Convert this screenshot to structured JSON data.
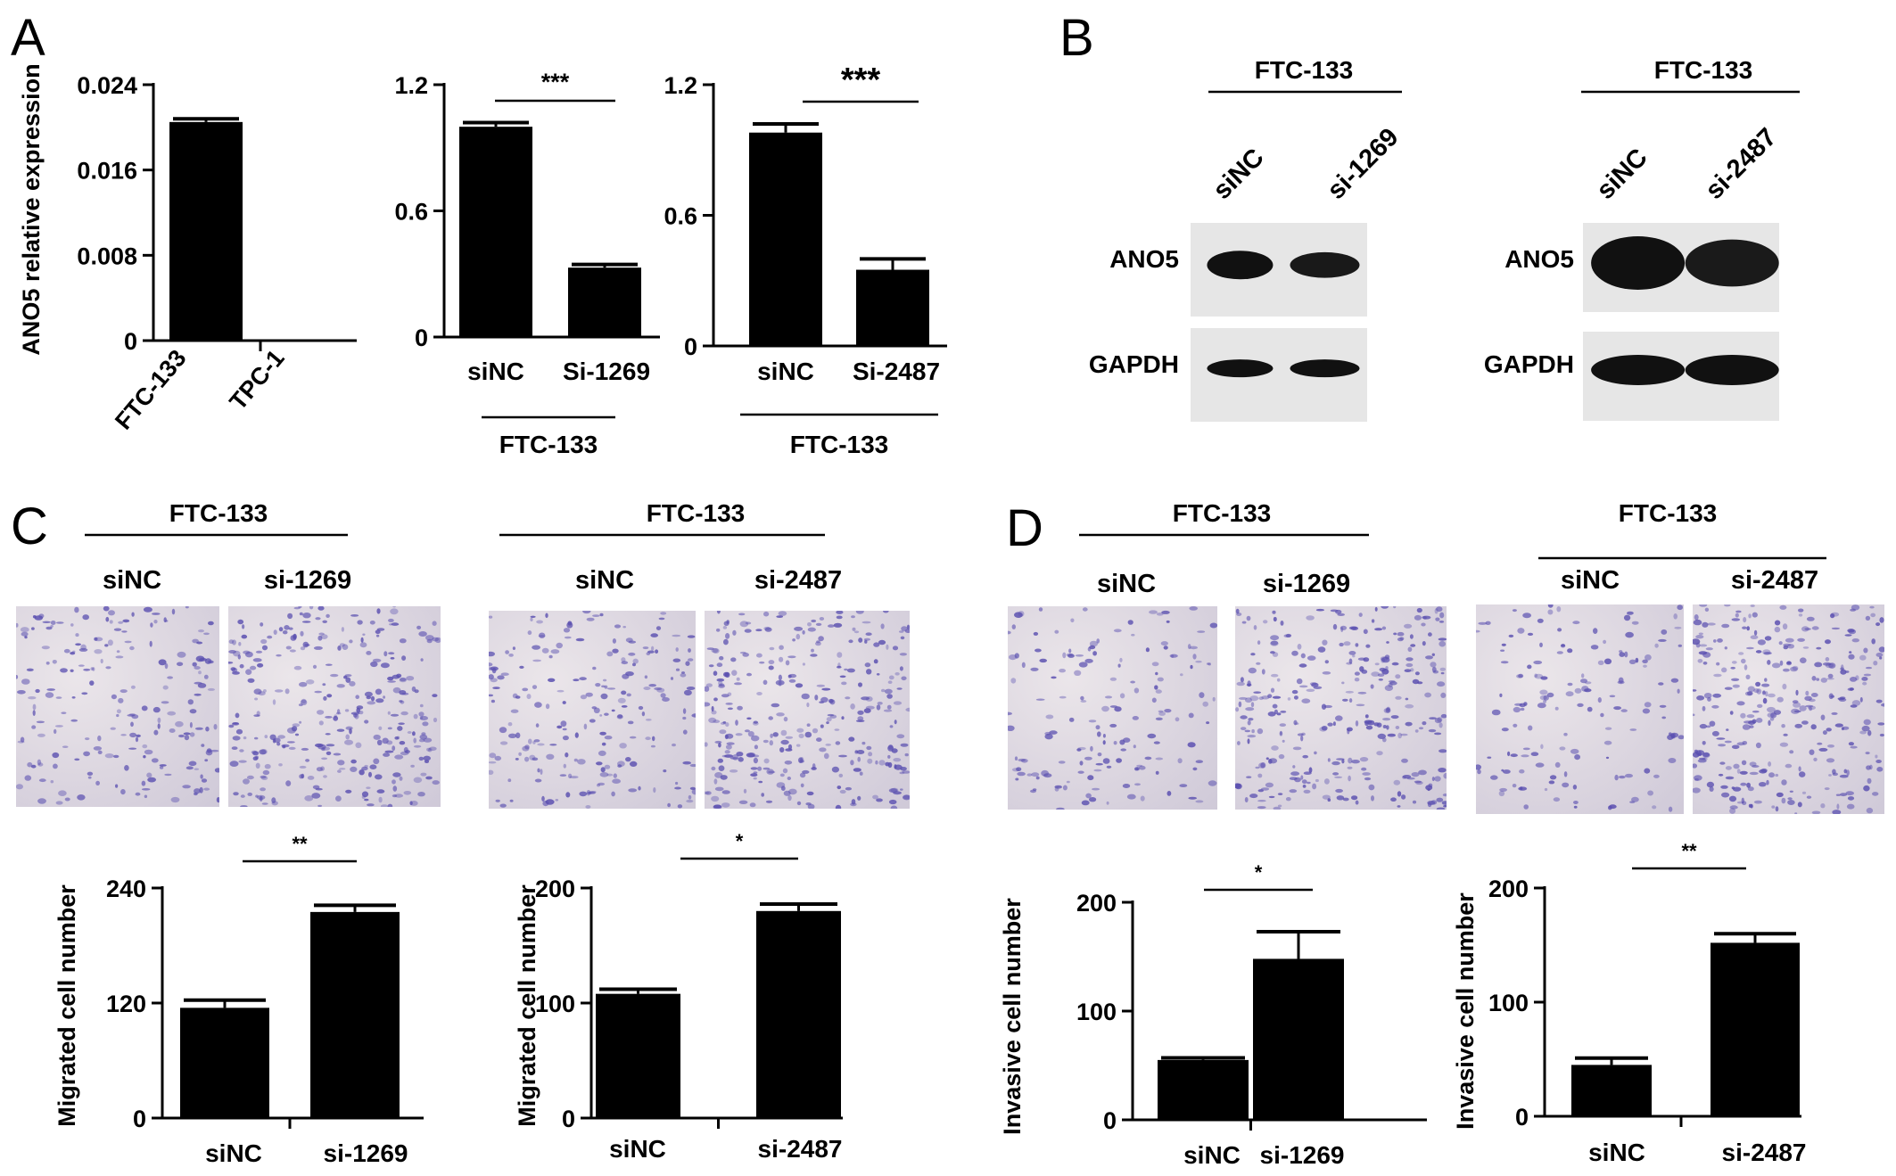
{
  "figure": {
    "panel_labels": {
      "a": "A",
      "b": "B",
      "c": "C",
      "d": "D"
    },
    "cell_line": "FTC-133",
    "blot_rows": {
      "target": "ANO5",
      "control": "GAPDH"
    }
  },
  "chart_data": [
    {
      "id": "A1",
      "type": "bar",
      "ylabel": "ANO5 relative expression",
      "categories": [
        "FTC-133",
        "TPC-1"
      ],
      "values": [
        0.0205,
        0.0
      ],
      "errors": [
        0.0003,
        0.0
      ],
      "ylim": [
        0,
        0.024
      ],
      "yticks": [
        "0",
        "0.008",
        "0.016",
        "0.024"
      ],
      "group_label": "",
      "sig": ""
    },
    {
      "id": "A2",
      "type": "bar",
      "ylabel": "",
      "categories": [
        "siNC",
        "Si-1269"
      ],
      "values": [
        1.0,
        0.33
      ],
      "errors": [
        0.02,
        0.015
      ],
      "ylim": [
        0,
        1.2
      ],
      "yticks": [
        "0",
        "0.6",
        "1.2"
      ],
      "group_label": "FTC-133",
      "sig": "***"
    },
    {
      "id": "A3",
      "type": "bar",
      "ylabel": "",
      "categories": [
        "siNC",
        "Si-2487"
      ],
      "values": [
        0.98,
        0.35
      ],
      "errors": [
        0.04,
        0.05
      ],
      "ylim": [
        0,
        1.2
      ],
      "yticks": [
        "0",
        "0.6",
        "1.2"
      ],
      "group_label": "FTC-133",
      "sig": "***"
    },
    {
      "id": "C1",
      "type": "bar",
      "ylabel": "Migrated cell number",
      "categories": [
        "siNC",
        "si-1269"
      ],
      "values": [
        115,
        215
      ],
      "errors": [
        8,
        7
      ],
      "ylim": [
        0,
        240
      ],
      "yticks": [
        "0",
        "120",
        "240"
      ],
      "group_label": "",
      "sig": "**"
    },
    {
      "id": "C2",
      "type": "bar",
      "ylabel": "Migrated cell number",
      "categories": [
        "siNC",
        "si-2487"
      ],
      "values": [
        108,
        180
      ],
      "errors": [
        4,
        6
      ],
      "ylim": [
        0,
        200
      ],
      "yticks": [
        "0",
        "100",
        "200"
      ],
      "group_label": "",
      "sig": "*"
    },
    {
      "id": "D1",
      "type": "bar",
      "ylabel": "Invasive cell number",
      "categories": [
        "siNC",
        "si-1269"
      ],
      "values": [
        55,
        148
      ],
      "errors": [
        2,
        25
      ],
      "ylim": [
        0,
        200
      ],
      "yticks": [
        "0",
        "100",
        "200"
      ],
      "group_label": "",
      "sig": "*"
    },
    {
      "id": "D2",
      "type": "bar",
      "ylabel": "Invasive cell number",
      "categories": [
        "siNC",
        "si-2487"
      ],
      "values": [
        45,
        152
      ],
      "errors": [
        6,
        8
      ],
      "ylim": [
        0,
        200
      ],
      "yticks": [
        "0",
        "100",
        "200"
      ],
      "group_label": "",
      "sig": "**"
    }
  ],
  "blots": [
    {
      "id": "B1",
      "group_label": "FTC-133",
      "lanes": [
        "siNC",
        "si-1269"
      ],
      "ano5_intensity": [
        1.0,
        0.75
      ],
      "gapdh_intensity": [
        1.0,
        1.0
      ]
    },
    {
      "id": "B2",
      "group_label": "FTC-133",
      "lanes": [
        "siNC",
        "si-2487"
      ],
      "ano5_intensity": [
        1.0,
        0.7
      ],
      "gapdh_intensity": [
        1.0,
        1.0
      ]
    }
  ],
  "transwell": [
    {
      "id": "C-left",
      "group_label": "FTC-133",
      "conditions": [
        "siNC",
        "si-1269"
      ],
      "relative_density": [
        0.55,
        1.0
      ]
    },
    {
      "id": "C-right",
      "group_label": "FTC-133",
      "conditions": [
        "siNC",
        "si-2487"
      ],
      "relative_density": [
        0.6,
        1.0
      ]
    },
    {
      "id": "D-left",
      "group_label": "FTC-133",
      "conditions": [
        "siNC",
        "si-1269"
      ],
      "relative_density": [
        0.4,
        1.0
      ]
    },
    {
      "id": "D-right",
      "group_label": "FTC-133",
      "conditions": [
        "siNC",
        "si-2487"
      ],
      "relative_density": [
        0.35,
        1.0
      ]
    }
  ],
  "colors": {
    "bar": "#000000",
    "stain": "#5a4fb0",
    "background": "#ffffff",
    "blot_bg": "#e6e6e6"
  }
}
